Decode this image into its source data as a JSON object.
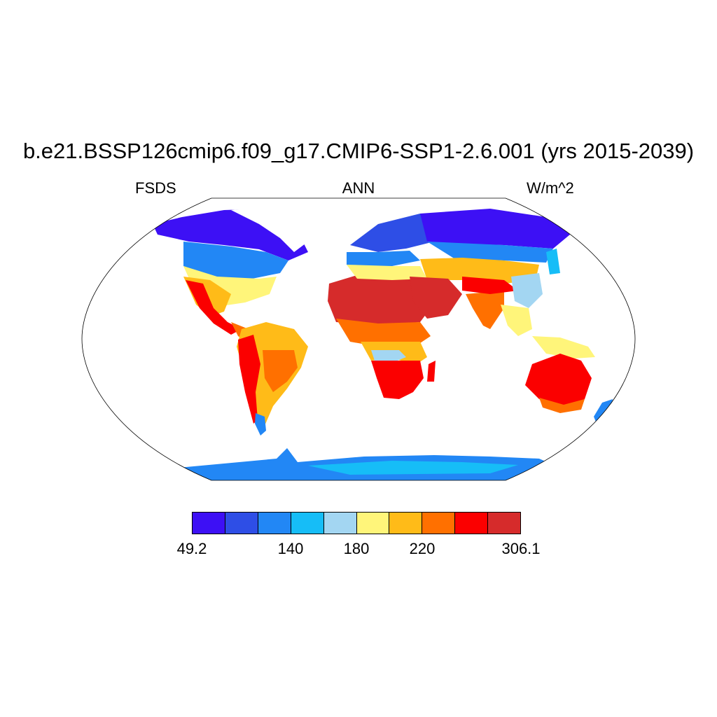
{
  "title": "b.e21.BSSP126cmip6.f09_g17.CMIP6-SSP1-2.6.001 (yrs 2015-2039)",
  "subtitle_left": "FSDS",
  "subtitle_center": "ANN",
  "subtitle_right": "W/m^2",
  "colorbar": {
    "colors": [
      "#3d10f5",
      "#2e4ee6",
      "#2287f5",
      "#16bdf7",
      "#a3d6f2",
      "#fff57a",
      "#ffbb18",
      "#ff7000",
      "#fb0000",
      "#d62b2b"
    ],
    "labels": [
      {
        "text": "49.2",
        "edge": 0
      },
      {
        "text": "140",
        "edge": 3
      },
      {
        "text": "180",
        "edge": 5
      },
      {
        "text": "220",
        "edge": 7
      },
      {
        "text": "306.1",
        "edge": 10
      }
    ]
  },
  "map": {
    "projection": "robinson",
    "variable": "FSDS",
    "period": "ANN"
  }
}
